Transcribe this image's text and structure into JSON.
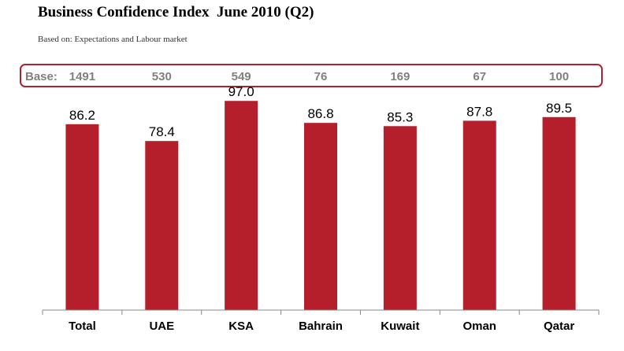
{
  "chart_data": {
    "type": "bar",
    "title": "Business Confidence Index  June 2010 (Q2)",
    "subtitle": "Based on: Expectations and Labour market",
    "base_label": "Base:",
    "categories": [
      "Total",
      "UAE",
      "KSA",
      "Bahrain",
      "Kuwait",
      "Oman",
      "Qatar"
    ],
    "base_values": [
      "1491",
      "530",
      "549",
      "76",
      "169",
      "67",
      "100"
    ],
    "values": [
      86.2,
      78.4,
      97.0,
      86.8,
      85.3,
      87.8,
      89.5
    ],
    "value_labels": [
      "86.2",
      "78.4",
      "97.0",
      "86.8",
      "85.3",
      "87.8",
      "89.5"
    ],
    "bar_color": "#b41f2b",
    "ylim": [
      0,
      100
    ],
    "grid": false,
    "legend": "none"
  }
}
